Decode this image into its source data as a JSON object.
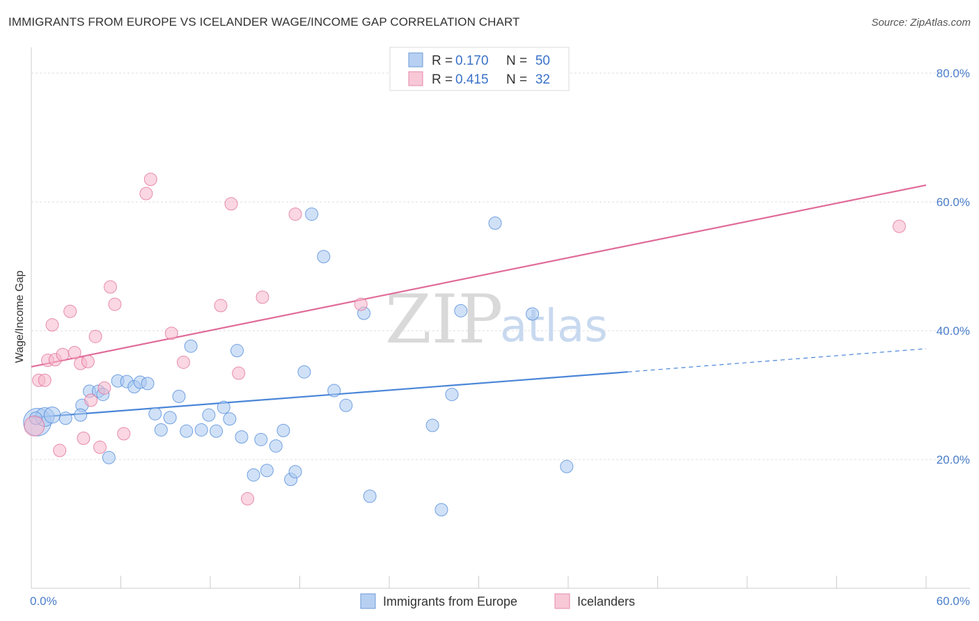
{
  "header": {
    "title": "IMMIGRANTS FROM EUROPE VS ICELANDER WAGE/INCOME GAP CORRELATION CHART",
    "source": "Source: ZipAtlas.com"
  },
  "colors": {
    "blue": "#4a86d8",
    "blue_fill": "#a9c8f0",
    "pink": "#e06b98",
    "pink_fill": "#f5b7cb",
    "grid": "#dddddd",
    "tick_text": "#4a7dc9"
  },
  "legend": {
    "rows": [
      {
        "r_label": "R =",
        "r_value": "0.170",
        "n_label": "N =",
        "n_value": "50"
      },
      {
        "r_label": "R =",
        "r_value": "0.415",
        "n_label": "N =",
        "n_value": "32"
      }
    ]
  },
  "watermark": {
    "zip": "ZIP",
    "atlas": "atlas"
  },
  "chart_data": {
    "type": "scatter",
    "title": "IMMIGRANTS FROM EUROPE VS ICELANDER WAGE/INCOME GAP CORRELATION CHART",
    "xlabel": "",
    "ylabel": "Wage/Income Gap",
    "xlim": [
      0,
      60
    ],
    "ylim": [
      0,
      84
    ],
    "x_tick_labels": [
      "0.0%",
      "60.0%"
    ],
    "y_ticks": [
      20,
      40,
      60,
      80
    ],
    "y_tick_labels": [
      "20.0%",
      "40.0%",
      "60.0%",
      "80.0%"
    ],
    "grid": true,
    "legend_position": "top-center",
    "series": [
      {
        "name": "Immigrants from Europe",
        "color": "#4a86d8",
        "r": 0.17,
        "n": 50,
        "trend": {
          "x0": 0,
          "y0": 26.5,
          "x1": 40,
          "y1": 33.6,
          "dash_x1": 60,
          "dash_y1": 37.2
        },
        "points": [
          [
            0.4,
            25.8,
            2.2
          ],
          [
            0.9,
            26.6,
            1.5
          ],
          [
            1.4,
            26.9,
            1.3
          ],
          [
            2.3,
            26.4,
            1
          ],
          [
            3.4,
            28.4,
            1
          ],
          [
            3.3,
            26.9,
            1
          ],
          [
            3.9,
            30.6,
            1
          ],
          [
            4.5,
            30.6,
            1
          ],
          [
            4.8,
            30.1,
            1
          ],
          [
            5.2,
            20.3,
            1
          ],
          [
            5.8,
            32.2,
            1
          ],
          [
            6.4,
            32.1,
            1
          ],
          [
            6.9,
            31.3,
            1
          ],
          [
            7.3,
            32.0,
            1
          ],
          [
            7.8,
            31.8,
            1
          ],
          [
            8.3,
            27.1,
            1
          ],
          [
            8.7,
            24.6,
            1
          ],
          [
            9.3,
            26.5,
            1
          ],
          [
            9.9,
            29.8,
            1
          ],
          [
            10.4,
            24.4,
            1
          ],
          [
            10.7,
            37.6,
            1
          ],
          [
            11.4,
            24.6,
            1
          ],
          [
            11.9,
            26.9,
            1
          ],
          [
            12.4,
            24.4,
            1
          ],
          [
            12.9,
            28.1,
            1
          ],
          [
            13.3,
            26.3,
            1
          ],
          [
            13.8,
            36.9,
            1
          ],
          [
            14.1,
            23.5,
            1
          ],
          [
            14.9,
            17.6,
            1
          ],
          [
            15.4,
            23.1,
            1
          ],
          [
            15.8,
            18.3,
            1
          ],
          [
            16.4,
            22.1,
            1
          ],
          [
            16.9,
            24.5,
            1
          ],
          [
            17.4,
            16.9,
            1
          ],
          [
            17.7,
            18.1,
            1
          ],
          [
            18.3,
            33.6,
            1
          ],
          [
            18.8,
            58.1,
            1
          ],
          [
            19.6,
            51.5,
            1
          ],
          [
            20.3,
            30.7,
            1
          ],
          [
            21.1,
            28.4,
            1
          ],
          [
            22.3,
            42.7,
            1
          ],
          [
            22.7,
            14.3,
            1
          ],
          [
            26.9,
            25.3,
            1
          ],
          [
            27.5,
            12.2,
            1
          ],
          [
            28.2,
            30.1,
            1
          ],
          [
            28.8,
            43.1,
            1
          ],
          [
            31.1,
            56.7,
            1
          ],
          [
            33.6,
            42.6,
            1
          ],
          [
            35.9,
            18.9,
            1
          ],
          [
            0.3,
            26.4,
            1
          ]
        ]
      },
      {
        "name": "Icelanders",
        "color": "#e06b98",
        "r": 0.415,
        "n": 32,
        "trend": {
          "x0": 0,
          "y0": 34.4,
          "x1": 60,
          "y1": 62.6
        },
        "points": [
          [
            0.2,
            25.2,
            1.6
          ],
          [
            0.5,
            32.3,
            1
          ],
          [
            0.9,
            32.3,
            1
          ],
          [
            1.1,
            35.4,
            1
          ],
          [
            1.4,
            40.9,
            1
          ],
          [
            1.6,
            35.5,
            1
          ],
          [
            1.9,
            21.4,
            1
          ],
          [
            2.1,
            36.3,
            1
          ],
          [
            2.6,
            43.0,
            1
          ],
          [
            2.9,
            36.6,
            1
          ],
          [
            3.3,
            34.9,
            1
          ],
          [
            3.5,
            23.3,
            1
          ],
          [
            3.8,
            35.2,
            1
          ],
          [
            4.0,
            29.2,
            1
          ],
          [
            4.3,
            39.1,
            1
          ],
          [
            4.6,
            21.9,
            1
          ],
          [
            4.9,
            31.1,
            1
          ],
          [
            5.3,
            46.8,
            1
          ],
          [
            5.6,
            44.1,
            1
          ],
          [
            6.2,
            24.0,
            1
          ],
          [
            7.7,
            61.3,
            1
          ],
          [
            8.0,
            63.5,
            1
          ],
          [
            9.4,
            39.6,
            1
          ],
          [
            10.2,
            35.1,
            1
          ],
          [
            12.7,
            43.9,
            1
          ],
          [
            13.4,
            59.7,
            1
          ],
          [
            13.9,
            33.4,
            1
          ],
          [
            14.5,
            13.9,
            1
          ],
          [
            15.5,
            45.2,
            1
          ],
          [
            17.7,
            58.1,
            1
          ],
          [
            22.1,
            44.1,
            1
          ],
          [
            58.2,
            56.2,
            1
          ]
        ]
      }
    ]
  },
  "bottom_legend": {
    "items": [
      {
        "label": "Immigrants from Europe"
      },
      {
        "label": "Icelanders"
      }
    ]
  }
}
